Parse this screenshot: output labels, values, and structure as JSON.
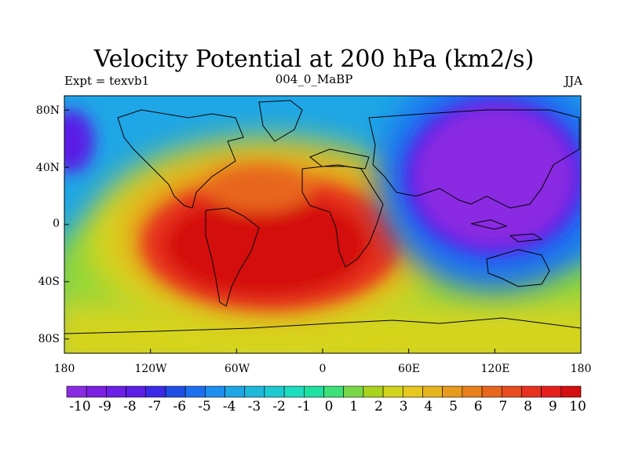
{
  "title": "Velocity Potential at 200 hPa (km2/s)",
  "subtitle_left": "Expt = texvb1",
  "subtitle_center": "004_0_MaBP",
  "subtitle_right": "JJA",
  "lat_labels": [
    "80N",
    "40N",
    "0",
    "40S",
    "80S"
  ],
  "lat_values": [
    80,
    40,
    0,
    -40,
    -80
  ],
  "lon_labels": [
    "180",
    "120W",
    "60W",
    "0",
    "60E",
    "120E",
    "180"
  ],
  "lon_values": [
    -180,
    -120,
    -60,
    0,
    60,
    120,
    180
  ],
  "colorbar": {
    "labels": [
      "-10",
      "-9",
      "-8",
      "-7",
      "-6",
      "-5",
      "-4",
      "-3",
      "-2",
      "-1",
      "0",
      "1",
      "2",
      "3",
      "4",
      "5",
      "6",
      "7",
      "8",
      "9",
      "10"
    ],
    "colors": [
      "#8a2be2",
      "#7b1fe0",
      "#6a1ee6",
      "#5a1ee6",
      "#3a2ae8",
      "#1f4fe6",
      "#1e6ff0",
      "#1e8ef0",
      "#1ea6e6",
      "#1eb8dc",
      "#1ecad2",
      "#1edcc0",
      "#1ee0a0",
      "#3ee07a",
      "#7ad848",
      "#a8d41e",
      "#d2d41e",
      "#e6c81e",
      "#e8b41e",
      "#e89a1e",
      "#e8801e",
      "#e8661e",
      "#e84c1e",
      "#e6321e",
      "#e61e1e",
      "#d40f0f"
    ]
  },
  "map_data": {
    "field": "velocity potential",
    "level": "200 hPa",
    "units": "km2/s",
    "season": "JJA",
    "centers": [
      {
        "name": "maximum",
        "lon": -40,
        "lat": -18,
        "value": 10
      },
      {
        "name": "minimum",
        "lon": 125,
        "lat": 40,
        "value": -10
      }
    ]
  },
  "colors": {
    "background": "#ffffff",
    "coastline": "#000000",
    "text": "#000000"
  }
}
